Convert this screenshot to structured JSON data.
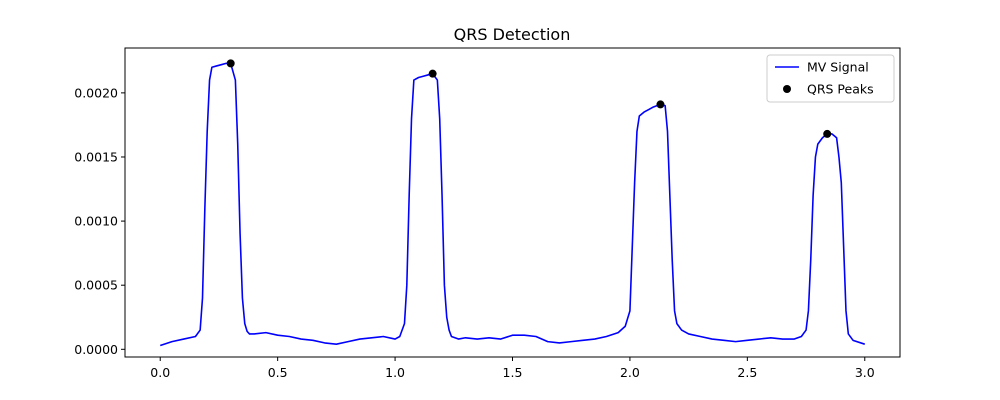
{
  "chart_data": {
    "type": "line",
    "title": "QRS Detection",
    "xlabel": "",
    "ylabel": "",
    "xlim": [
      -0.15,
      3.15
    ],
    "ylim": [
      -6e-05,
      0.00235
    ],
    "xticks": [
      0.0,
      0.5,
      1.0,
      1.5,
      2.0,
      2.5,
      3.0
    ],
    "xtick_labels": [
      "0.0",
      "0.5",
      "1.0",
      "1.5",
      "2.0",
      "2.5",
      "3.0"
    ],
    "yticks": [
      0.0,
      0.0005,
      0.001,
      0.0015,
      0.002
    ],
    "ytick_labels": [
      "0.0000",
      "0.0005",
      "0.0010",
      "0.0015",
      "0.0020"
    ],
    "grid": false,
    "legend_position": "top-right",
    "series": [
      {
        "name": "MV Signal",
        "kind": "line",
        "color": "#0000ff",
        "x": [
          0.0,
          0.05,
          0.1,
          0.15,
          0.17,
          0.18,
          0.19,
          0.2,
          0.21,
          0.22,
          0.24,
          0.26,
          0.28,
          0.3,
          0.32,
          0.33,
          0.34,
          0.35,
          0.36,
          0.37,
          0.38,
          0.4,
          0.45,
          0.5,
          0.55,
          0.6,
          0.65,
          0.7,
          0.75,
          0.8,
          0.85,
          0.9,
          0.95,
          1.0,
          1.02,
          1.04,
          1.05,
          1.06,
          1.07,
          1.08,
          1.1,
          1.12,
          1.14,
          1.16,
          1.18,
          1.19,
          1.2,
          1.21,
          1.22,
          1.23,
          1.24,
          1.27,
          1.3,
          1.35,
          1.4,
          1.45,
          1.5,
          1.55,
          1.6,
          1.65,
          1.7,
          1.75,
          1.8,
          1.85,
          1.9,
          1.95,
          1.98,
          2.0,
          2.01,
          2.02,
          2.03,
          2.04,
          2.06,
          2.08,
          2.1,
          2.13,
          2.15,
          2.16,
          2.17,
          2.18,
          2.19,
          2.2,
          2.22,
          2.25,
          2.3,
          2.35,
          2.4,
          2.45,
          2.5,
          2.55,
          2.6,
          2.65,
          2.7,
          2.73,
          2.75,
          2.76,
          2.77,
          2.78,
          2.79,
          2.8,
          2.82,
          2.84,
          2.86,
          2.88,
          2.89,
          2.9,
          2.91,
          2.92,
          2.93,
          2.95,
          3.0
        ],
        "y": [
          3e-05,
          6e-05,
          8e-05,
          0.0001,
          0.00015,
          0.0004,
          0.0011,
          0.0017,
          0.0021,
          0.0022,
          0.00221,
          0.00222,
          0.00223,
          0.00223,
          0.0021,
          0.0016,
          0.0009,
          0.0004,
          0.0002,
          0.00014,
          0.00012,
          0.00012,
          0.00013,
          0.00011,
          0.0001,
          8e-05,
          7e-05,
          5e-05,
          4e-05,
          6e-05,
          8e-05,
          9e-05,
          0.0001,
          8e-05,
          0.0001,
          0.0002,
          0.0005,
          0.0012,
          0.0018,
          0.0021,
          0.00212,
          0.00213,
          0.00214,
          0.00215,
          0.0021,
          0.0018,
          0.0012,
          0.0005,
          0.00025,
          0.00015,
          0.0001,
          8e-05,
          9e-05,
          8e-05,
          9e-05,
          8e-05,
          0.00011,
          0.00011,
          0.0001,
          6e-05,
          5e-05,
          6e-05,
          7e-05,
          8e-05,
          0.0001,
          0.00013,
          0.00018,
          0.0003,
          0.0008,
          0.0013,
          0.0017,
          0.00182,
          0.00185,
          0.00187,
          0.00189,
          0.00191,
          0.0019,
          0.0017,
          0.0012,
          0.0007,
          0.0003,
          0.0002,
          0.00015,
          0.00012,
          0.0001,
          8e-05,
          7e-05,
          6e-05,
          7e-05,
          8e-05,
          9e-05,
          8e-05,
          8e-05,
          0.0001,
          0.00015,
          0.0003,
          0.0007,
          0.0012,
          0.0015,
          0.0016,
          0.00165,
          0.00168,
          0.00168,
          0.00165,
          0.0015,
          0.0013,
          0.0008,
          0.0003,
          0.00012,
          7e-05,
          4e-05
        ]
      },
      {
        "name": "QRS Peaks",
        "kind": "scatter",
        "color": "#000000",
        "x": [
          0.3,
          1.16,
          2.13,
          2.84
        ],
        "y": [
          0.00223,
          0.00215,
          0.00191,
          0.00168
        ]
      }
    ]
  }
}
